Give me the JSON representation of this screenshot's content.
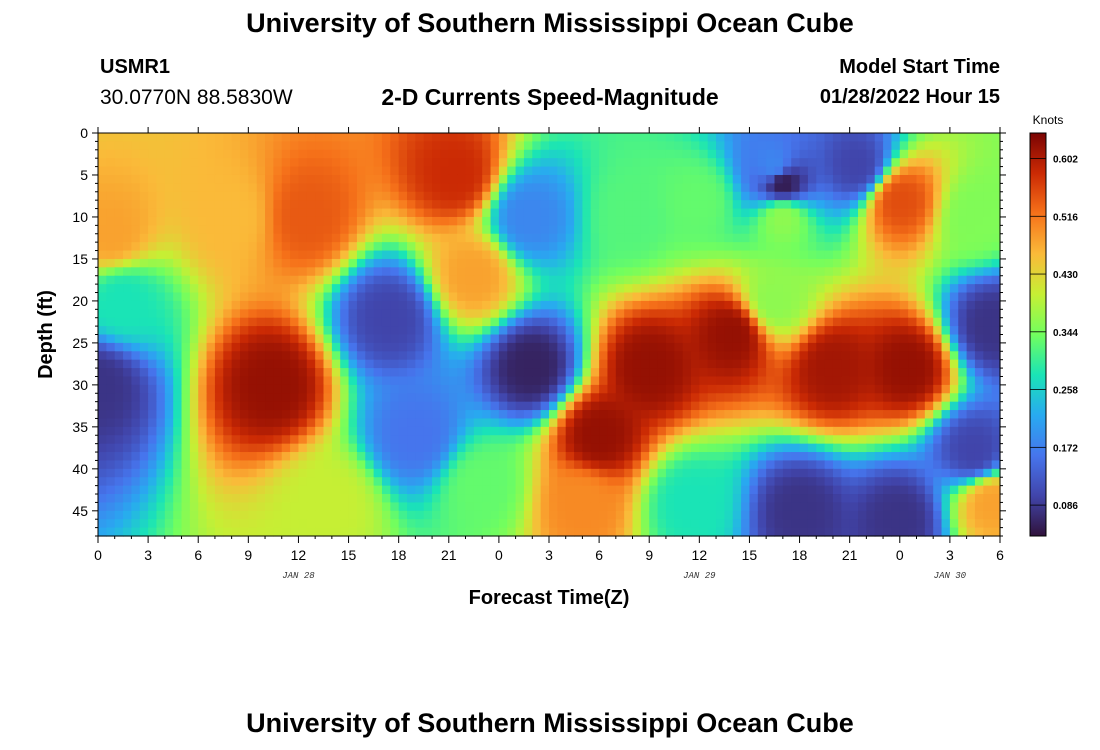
{
  "header": {
    "title": "University of Southern Mississippi Ocean Cube",
    "station_id": "USMR1",
    "coordinates": "30.0770N  88.5830W",
    "plot_title": "2-D Currents Speed-Magnitude",
    "model_start_label": "Model Start Time",
    "model_start_value": "01/28/2022 Hour 15"
  },
  "footer": {
    "title": "University of Southern Mississippi Ocean Cube"
  },
  "chart_data": {
    "type": "heatmap",
    "xlabel": "Forecast Time(Z)",
    "ylabel": "Depth (ft)",
    "x_range_hours": [
      0,
      54
    ],
    "y_range": [
      0,
      48
    ],
    "y_inverted": true,
    "x_tick_labels": [
      "0",
      "3",
      "6",
      "9",
      "12",
      "15",
      "18",
      "21",
      "0",
      "3",
      "6",
      "9",
      "12",
      "15",
      "18",
      "21",
      "0",
      "3",
      "6"
    ],
    "date_labels": [
      {
        "text": "JAN 28",
        "at_hour": 12
      },
      {
        "text": "JAN 29",
        "at_hour": 36
      },
      {
        "text": "JAN 30",
        "at_hour": 51
      }
    ],
    "y_ticks": [
      0,
      5,
      10,
      15,
      20,
      25,
      30,
      35,
      40,
      45
    ],
    "colorbar": {
      "unit": "Knots",
      "range": [
        0.04,
        0.64
      ],
      "ticks": [
        "0.602",
        "0.516",
        "0.430",
        "0.344",
        "0.258",
        "0.172",
        "0.086"
      ],
      "colormap": "turbo"
    },
    "features": [
      {
        "x": 10.5,
        "y": 30,
        "value": 0.62
      },
      {
        "x": 8,
        "y": 10,
        "value": 0.46
      },
      {
        "x": 12.5,
        "y": 10,
        "value": 0.54
      },
      {
        "x": 14,
        "y": 44,
        "value": 0.4
      },
      {
        "x": 0.8,
        "y": 12,
        "value": 0.48
      },
      {
        "x": 0,
        "y": 30,
        "value": 0.08
      },
      {
        "x": 1.5,
        "y": 20,
        "value": 0.28
      },
      {
        "x": 17.5,
        "y": 22,
        "value": 0.1
      },
      {
        "x": 19,
        "y": 36,
        "value": 0.16
      },
      {
        "x": 21.5,
        "y": 5,
        "value": 0.58
      },
      {
        "x": 22.5,
        "y": 17,
        "value": 0.48
      },
      {
        "x": 26,
        "y": 28,
        "value": 0.06
      },
      {
        "x": 25.8,
        "y": 10,
        "value": 0.18
      },
      {
        "x": 23,
        "y": 42,
        "value": 0.33
      },
      {
        "x": 30,
        "y": 36,
        "value": 0.62
      },
      {
        "x": 29,
        "y": 44,
        "value": 0.5
      },
      {
        "x": 33,
        "y": 28,
        "value": 0.62
      },
      {
        "x": 38,
        "y": 24,
        "value": 0.62
      },
      {
        "x": 44,
        "y": 28,
        "value": 0.61
      },
      {
        "x": 48.5,
        "y": 28,
        "value": 0.62
      },
      {
        "x": 41,
        "y": 10,
        "value": 0.36
      },
      {
        "x": 40.5,
        "y": 20,
        "value": 0.36
      },
      {
        "x": 40.5,
        "y": 4,
        "value": 0.18
      },
      {
        "x": 41,
        "y": 6,
        "value": 0.05
      },
      {
        "x": 45.5,
        "y": 4,
        "value": 0.1
      },
      {
        "x": 42,
        "y": 45,
        "value": 0.08
      },
      {
        "x": 48,
        "y": 46,
        "value": 0.08
      },
      {
        "x": 35.5,
        "y": 44,
        "value": 0.28
      },
      {
        "x": 48,
        "y": 8,
        "value": 0.55
      },
      {
        "x": 52.5,
        "y": 10,
        "value": 0.35
      },
      {
        "x": 52.5,
        "y": 38,
        "value": 0.1
      },
      {
        "x": 53.5,
        "y": 23,
        "value": 0.08
      },
      {
        "x": 53.5,
        "y": 44,
        "value": 0.48
      },
      {
        "x": 32,
        "y": 10,
        "value": 0.32
      },
      {
        "x": 36,
        "y": 8,
        "value": 0.33
      }
    ]
  }
}
